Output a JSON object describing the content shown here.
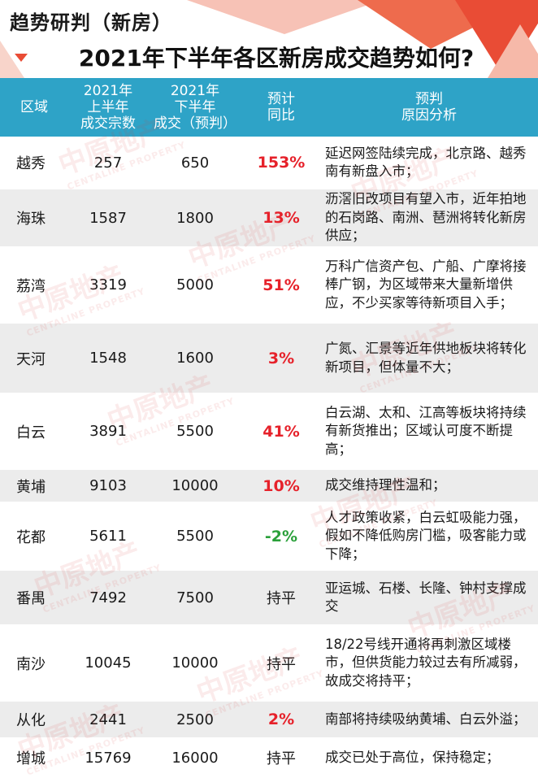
{
  "header": {
    "section_tag": "趋势研判（新房）",
    "title": "2021年下半年各区新房成交趋势如何?"
  },
  "table": {
    "columns": {
      "district": "区域",
      "h1": [
        "2021年",
        "上半年",
        "成交宗数"
      ],
      "h2": [
        "2021年",
        "下半年",
        "成交（预判）"
      ],
      "yoy": [
        "预计",
        "同比"
      ],
      "reason": [
        "预判",
        "原因分析"
      ]
    },
    "rows": [
      {
        "district": "越秀",
        "h1": "257",
        "h2": "650",
        "yoy": "153%",
        "yoy_type": "red",
        "reason": "延迟网签陆续完成，北京路、越秀南有新盘入市；"
      },
      {
        "district": "海珠",
        "h1": "1587",
        "h2": "1800",
        "yoy": "13%",
        "yoy_type": "red",
        "reason": "沥滘旧改项目有望入市，近年拍地的石岗路、南洲、琶洲将转化新房供应；"
      },
      {
        "district": "荔湾",
        "h1": "3319",
        "h2": "5000",
        "yoy": "51%",
        "yoy_type": "red",
        "reason": "万科广信资产包、广船、广摩将接棒广钢，为区域带来大量新增供应，不少买家等待新项目入手；"
      },
      {
        "district": "天河",
        "h1": "1548",
        "h2": "1600",
        "yoy": "3%",
        "yoy_type": "red",
        "reason": "广氮、汇景等近年供地板块将转化新项目，但体量不大；"
      },
      {
        "district": "白云",
        "h1": "3891",
        "h2": "5500",
        "yoy": "41%",
        "yoy_type": "red",
        "reason": "白云湖、太和、江高等板块将持续有新货推出；区域认可度不断提高；"
      },
      {
        "district": "黄埔",
        "h1": "9103",
        "h2": "10000",
        "yoy": "10%",
        "yoy_type": "red",
        "reason": "成交维持理性温和；"
      },
      {
        "district": "花都",
        "h1": "5611",
        "h2": "5500",
        "yoy": "-2%",
        "yoy_type": "green",
        "reason": "人才政策收紧，白云虹吸能力强，假如不降低购房门槛，吸客能力或下降；"
      },
      {
        "district": "番禺",
        "h1": "7492",
        "h2": "7500",
        "yoy": "持平",
        "yoy_type": "flat",
        "reason": "亚运城、石楼、长隆、钟村支撑成交"
      },
      {
        "district": "南沙",
        "h1": "10045",
        "h2": "10000",
        "yoy": "持平",
        "yoy_type": "flat",
        "reason": "18/22号线开通将再刺激区域楼市，但供货能力较过去有所减弱，故成交将持平；"
      },
      {
        "district": "从化",
        "h1": "2441",
        "h2": "2500",
        "yoy": "2%",
        "yoy_type": "red",
        "reason": "南部将持续吸纳黄埔、白云外溢；"
      },
      {
        "district": "增城",
        "h1": "15769",
        "h2": "16000",
        "yoy": "持平",
        "yoy_type": "flat",
        "reason": "成交已处于高位，保持稳定；"
      }
    ]
  },
  "watermark": {
    "brand": "中原地产",
    "brand_en": "CENTALINE PROPERTY"
  },
  "colors": {
    "header_bg": "#2ea3c7",
    "row_alt": "#ececec",
    "positive": "#e6212a",
    "negative": "#2aa03a"
  }
}
